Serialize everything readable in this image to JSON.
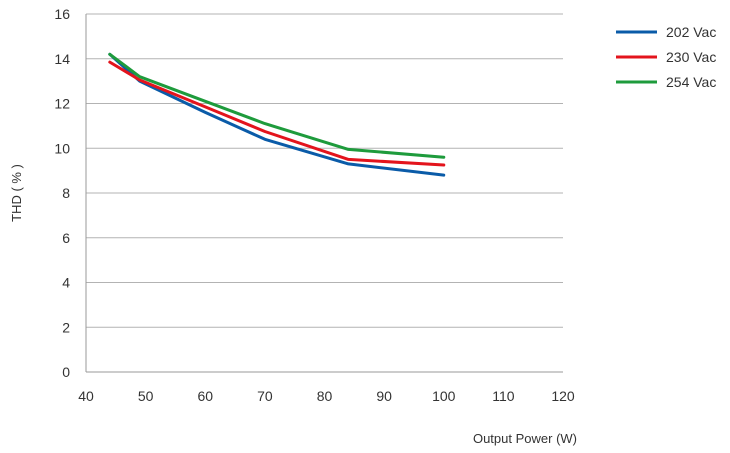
{
  "chart_data": {
    "type": "line",
    "title": "",
    "xlabel": "Output Power (W)",
    "ylabel": "THD ( % )",
    "xlim": [
      40,
      120
    ],
    "ylim": [
      0,
      16
    ],
    "x_ticks": [
      "40",
      "50",
      "60",
      "70",
      "80",
      "90",
      "100",
      "110",
      "120"
    ],
    "y_ticks": [
      "0",
      "2",
      "4",
      "6",
      "8",
      "10",
      "12",
      "14",
      "16"
    ],
    "grid": "horizontal",
    "legend_position": "top-right",
    "series": [
      {
        "name": "202 Vac",
        "color": "#0a5ba8",
        "x": [
          44,
          49,
          60,
          70,
          84,
          100
        ],
        "y": [
          14.2,
          13.0,
          11.6,
          10.4,
          9.3,
          8.8
        ]
      },
      {
        "name": "230 Vac",
        "color": "#e3141c",
        "x": [
          44,
          49,
          60,
          70,
          84,
          100
        ],
        "y": [
          13.85,
          13.05,
          11.85,
          10.75,
          9.5,
          9.25
        ]
      },
      {
        "name": "254 Vac",
        "color": "#1e9b3c",
        "x": [
          44,
          49,
          60,
          70,
          84,
          100
        ],
        "y": [
          14.2,
          13.2,
          12.1,
          11.1,
          9.95,
          9.6
        ]
      }
    ]
  }
}
